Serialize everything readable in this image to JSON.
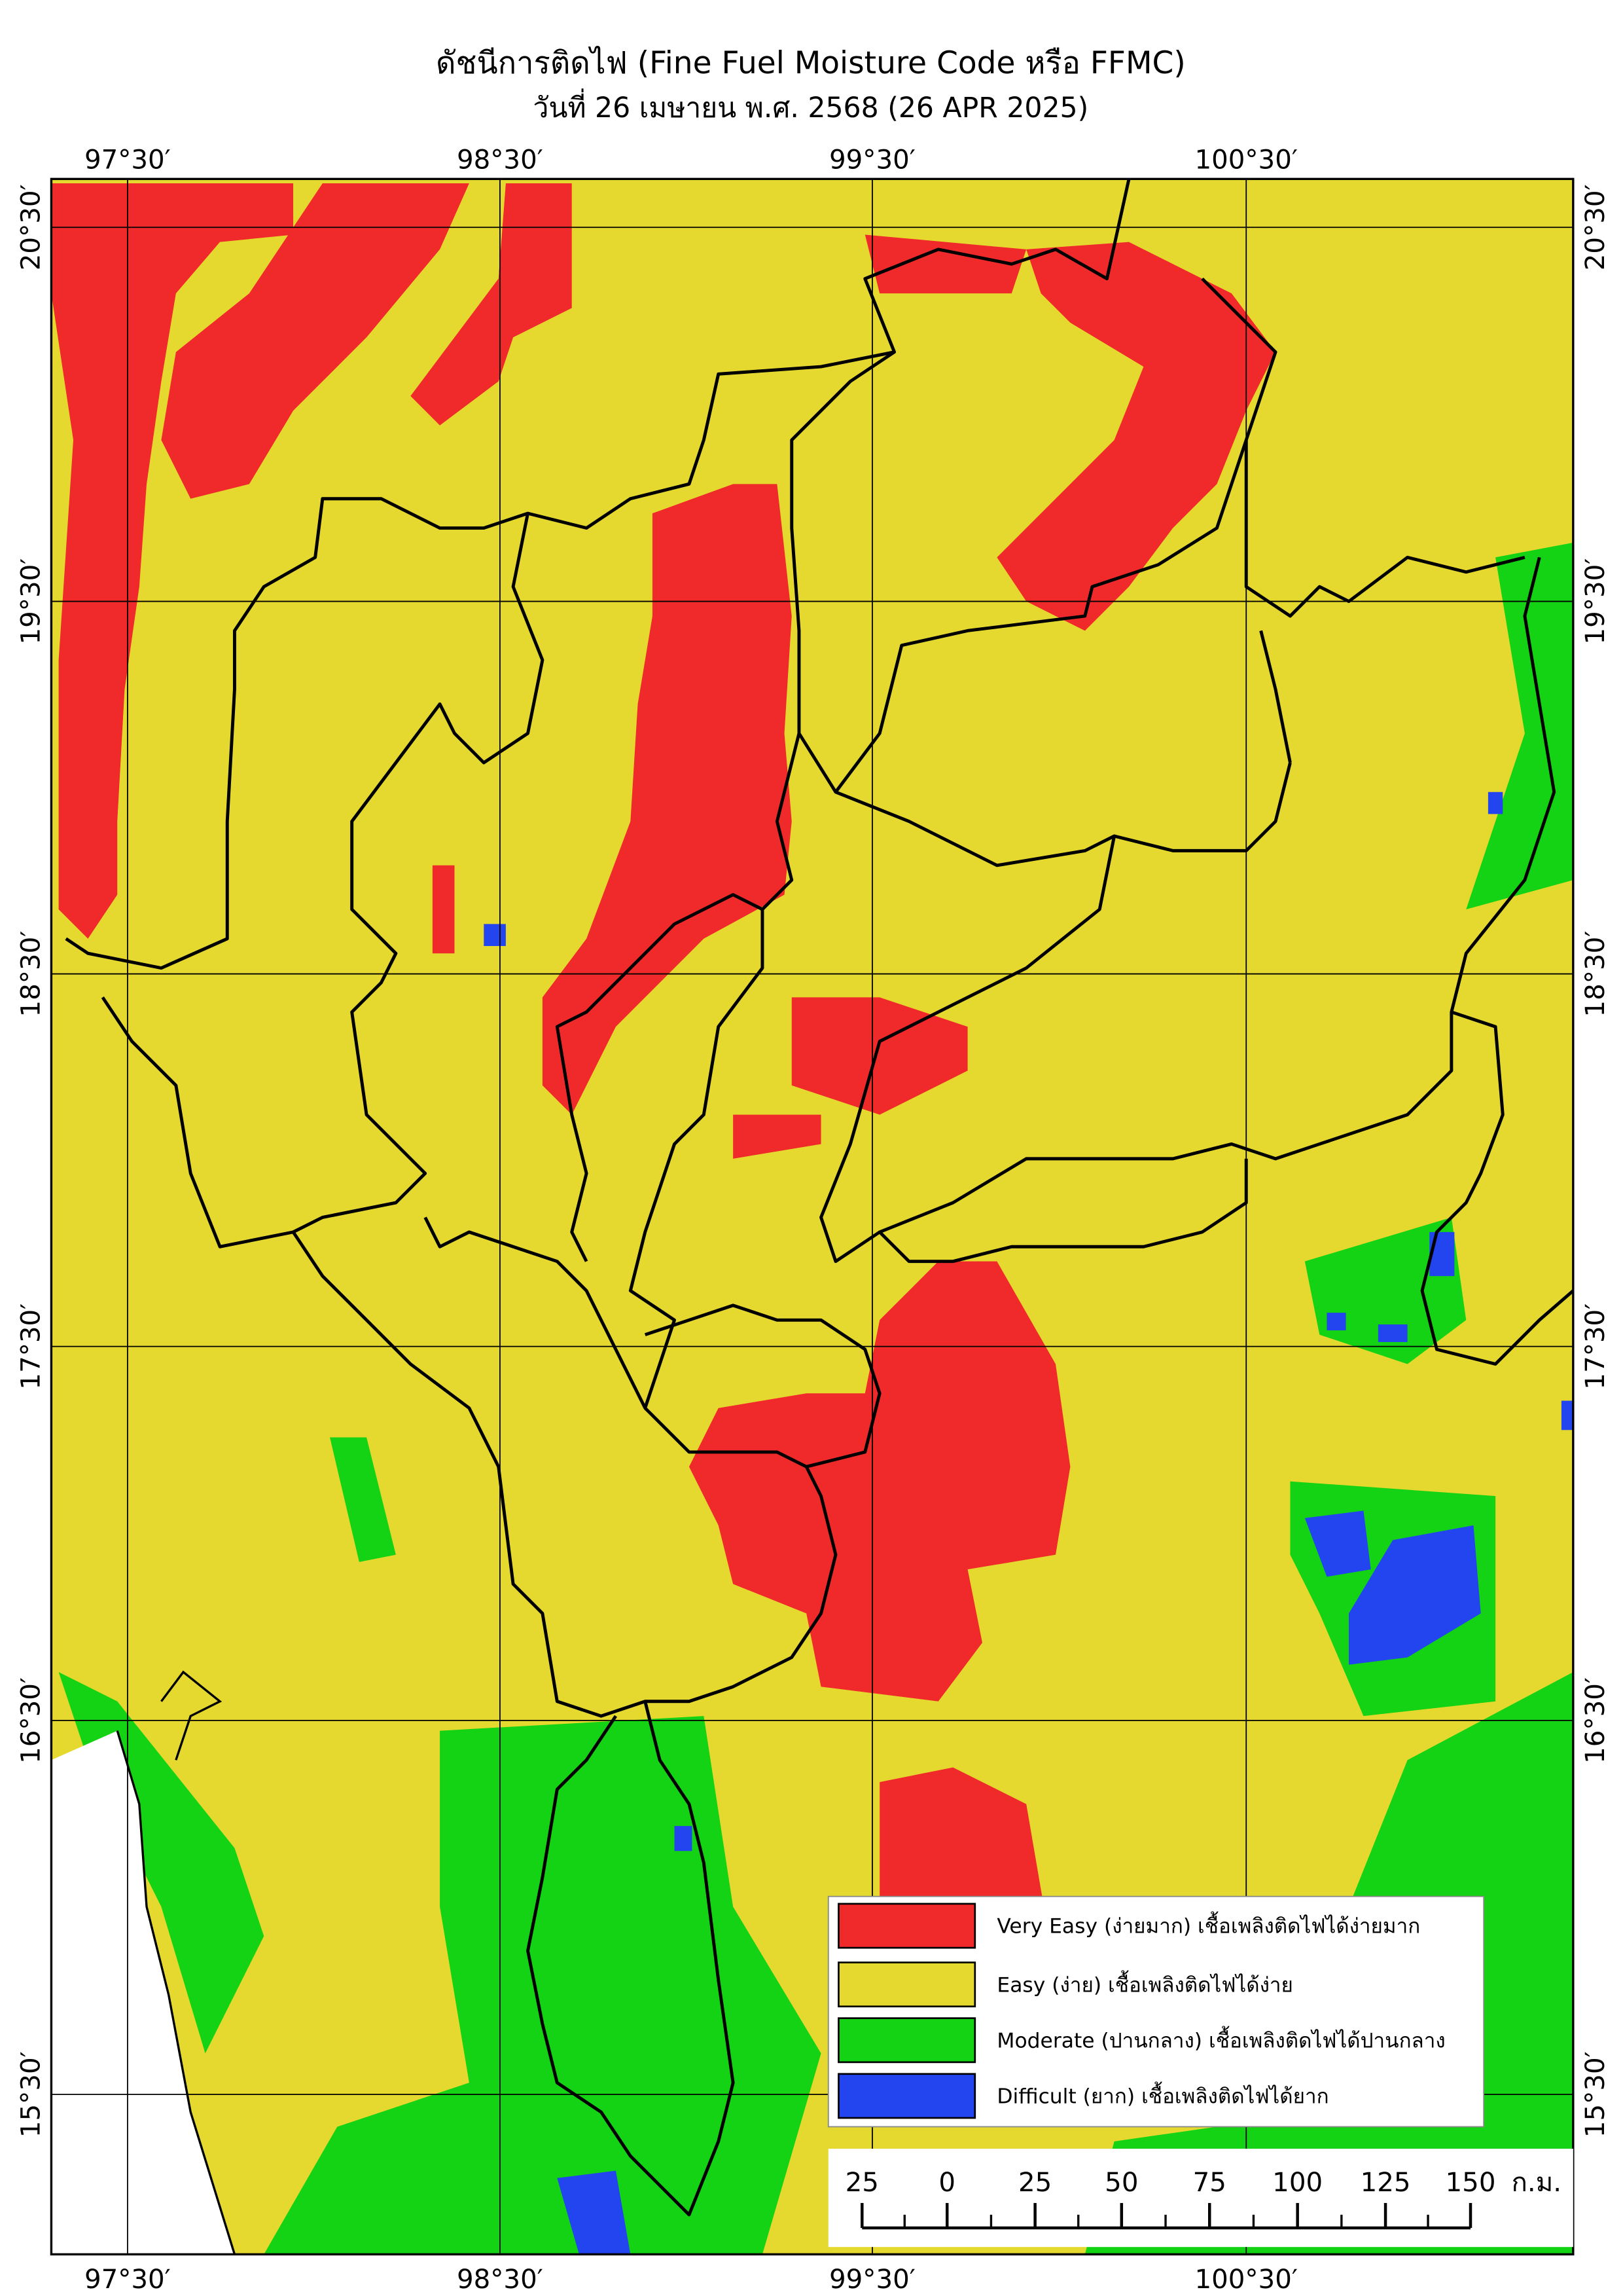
{
  "header": {
    "title": "ดัชนีการติดไฟ (Fine Fuel Moisture Code หรือ FFMC)",
    "subtitle": "วันที่ 26 เมษายน พ.ศ. 2568 (26 APR 2025)"
  },
  "longitude_labels": [
    "97°30′",
    "98°30′",
    "99°30′",
    "100°30′"
  ],
  "latitude_labels": [
    "20°30′",
    "19°30′",
    "18°30′",
    "17°30′",
    "16°30′",
    "15°30′"
  ],
  "legend": [
    {
      "color": "#f02a2a",
      "label": "Very Easy (ง่ายมาก) เชื้อเพลิงติดไฟได้ง่ายมาก"
    },
    {
      "color": "#e5d92f",
      "label": "Easy (ง่าย) เชื้อเพลิงติดไฟได้ง่าย"
    },
    {
      "color": "#14d214",
      "label": "Moderate (ปานกลาง) เชื้อเพลิงติดไฟได้ปานกลาง"
    },
    {
      "color": "#2245f0",
      "label": "Difficult (ยาก) เชื้อเพลิงติดไฟได้ยาก"
    }
  ],
  "scale_bar": {
    "labels": [
      "25",
      "0",
      "25",
      "50",
      "75",
      "100",
      "125",
      "150"
    ],
    "unit": "ก.ม."
  }
}
